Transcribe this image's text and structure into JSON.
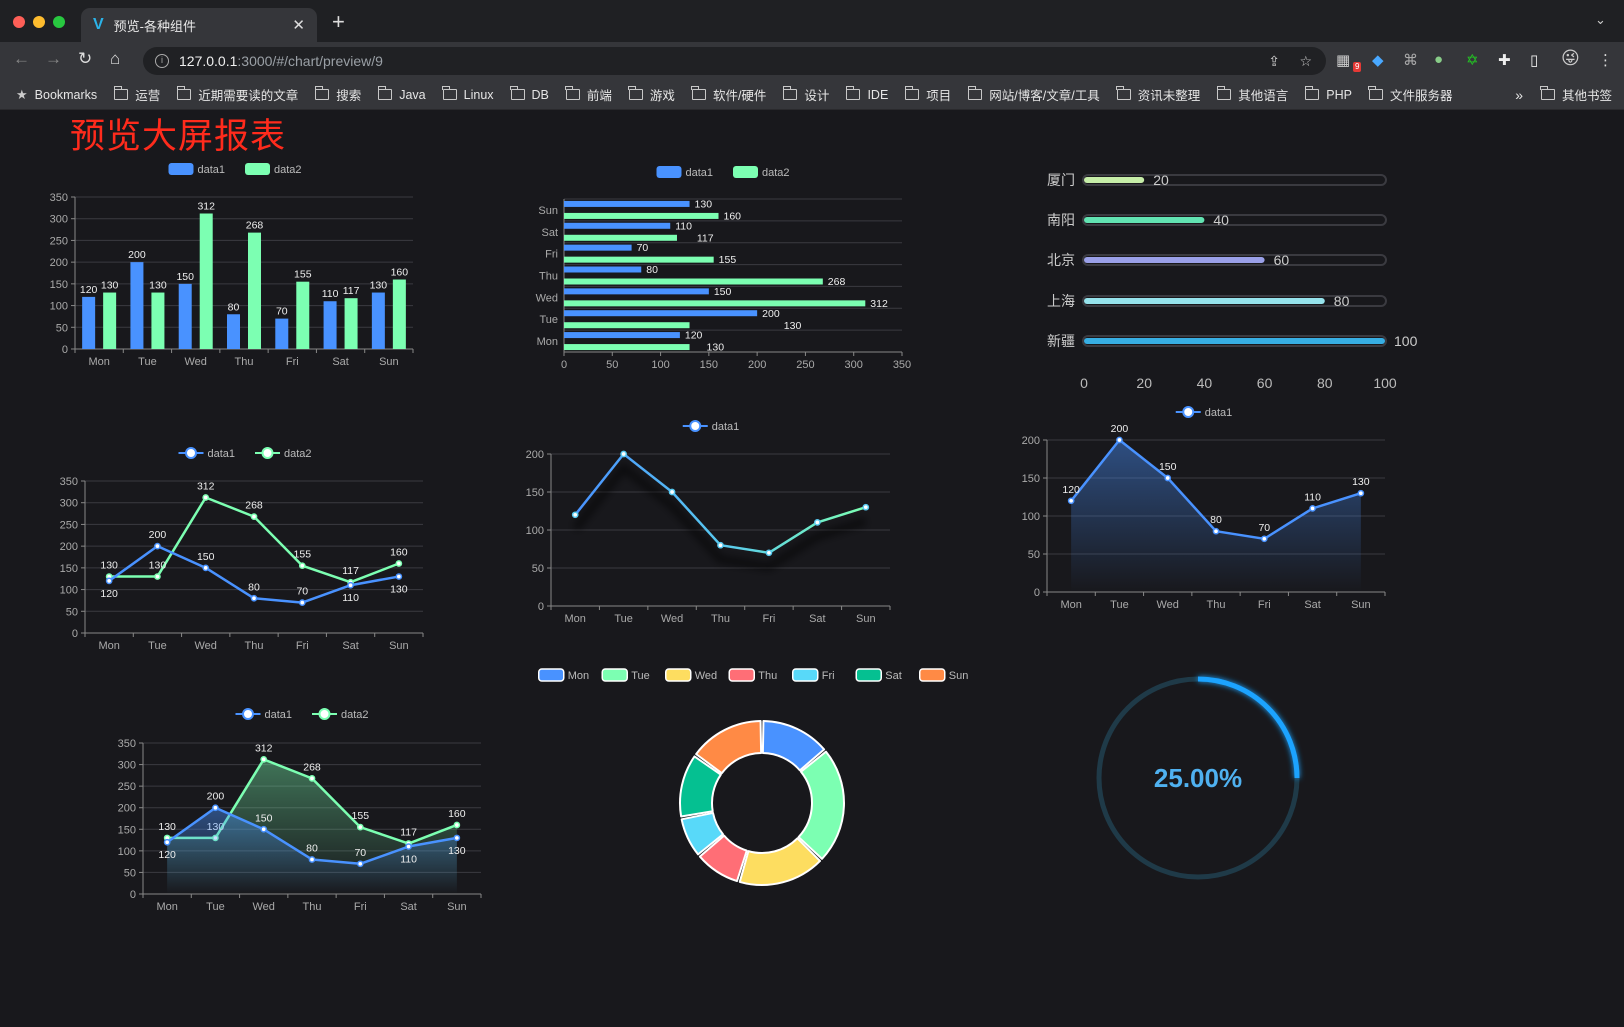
{
  "browser": {
    "tab_title": "预览-各种组件",
    "url_host": "127.0.0.1",
    "url_path": ":3000/#/chart/preview/9",
    "extension_badge": "9",
    "bookmarks": [
      "Bookmarks",
      "运营",
      "近期需要读的文章",
      "搜索",
      "Java",
      "Linux",
      "DB",
      "前端",
      "游戏",
      "软件/硬件",
      "设计",
      "IDE",
      "项目",
      "网站/博客/文章/工具",
      "资讯未整理",
      "其他语言",
      "PHP",
      "文件服务器"
    ],
    "bookmarks_overflow": "»",
    "other_bookmarks": "其他书签"
  },
  "page": {
    "title": "预览大屏报表",
    "title_color": "#ff2b1c"
  },
  "colors": {
    "data1": "#4992ff",
    "data2": "#7cffb2",
    "palette": [
      "#4992ff",
      "#7cffb2",
      "#fddd60",
      "#ff6e76",
      "#58d9f9",
      "#05c091",
      "#ff8a45"
    ]
  },
  "chart_data": [
    {
      "type": "bar",
      "legend": [
        "data1",
        "data2"
      ],
      "categories": [
        "Mon",
        "Tue",
        "Wed",
        "Thu",
        "Fri",
        "Sat",
        "Sun"
      ],
      "series": [
        {
          "name": "data1",
          "values": [
            120,
            200,
            150,
            80,
            70,
            110,
            130
          ]
        },
        {
          "name": "data2",
          "values": [
            130,
            130,
            312,
            268,
            155,
            117,
            160
          ]
        }
      ],
      "yticks": [
        0,
        50,
        100,
        150,
        200,
        250,
        300,
        350
      ],
      "ylim": [
        0,
        350
      ],
      "data_labels": true
    },
    {
      "type": "bar",
      "orientation": "horizontal",
      "legend": [
        "data1",
        "data2"
      ],
      "categories": [
        "Mon",
        "Tue",
        "Wed",
        "Thu",
        "Fri",
        "Sat",
        "Sun"
      ],
      "series": [
        {
          "name": "data1",
          "values": [
            120,
            200,
            150,
            80,
            70,
            110,
            130
          ]
        },
        {
          "name": "data2",
          "values": [
            130,
            130,
            312,
            268,
            155,
            117,
            160
          ]
        }
      ],
      "xticks": [
        0,
        50,
        100,
        150,
        200,
        250,
        300,
        350
      ],
      "xlim": [
        0,
        350
      ],
      "data_labels": true
    },
    {
      "type": "bar",
      "orientation": "horizontal",
      "style": "progress",
      "categories": [
        "厦门",
        "南阳",
        "北京",
        "上海",
        "新疆"
      ],
      "values": [
        20,
        40,
        60,
        80,
        100
      ],
      "colors": [
        "#c6eda8",
        "#62e3b2",
        "#9aa0e8",
        "#96e3ec",
        "#37aee3"
      ],
      "xticks": [
        0,
        20,
        40,
        60,
        80,
        100
      ],
      "xlim": [
        0,
        100
      ]
    },
    {
      "type": "line",
      "legend": [
        "data1",
        "data2"
      ],
      "categories": [
        "Mon",
        "Tue",
        "Wed",
        "Thu",
        "Fri",
        "Sat",
        "Sun"
      ],
      "series": [
        {
          "name": "data1",
          "values": [
            120,
            200,
            150,
            80,
            70,
            110,
            130
          ]
        },
        {
          "name": "data2",
          "values": [
            130,
            130,
            312,
            268,
            155,
            117,
            160
          ]
        }
      ],
      "yticks": [
        0,
        50,
        100,
        150,
        200,
        250,
        300,
        350
      ],
      "ylim": [
        0,
        350
      ],
      "data_labels": true
    },
    {
      "type": "line",
      "legend": [
        "data1"
      ],
      "categories": [
        "Mon",
        "Tue",
        "Wed",
        "Thu",
        "Fri",
        "Sat",
        "Sun"
      ],
      "series": [
        {
          "name": "data1",
          "values": [
            120,
            200,
            150,
            80,
            70,
            110,
            130
          ]
        }
      ],
      "yticks": [
        0,
        50,
        100,
        150,
        200
      ],
      "ylim": [
        0,
        200
      ],
      "gradient_line": true
    },
    {
      "type": "area",
      "legend": [
        "data1"
      ],
      "categories": [
        "Mon",
        "Tue",
        "Wed",
        "Thu",
        "Fri",
        "Sat",
        "Sun"
      ],
      "series": [
        {
          "name": "data1",
          "values": [
            120,
            200,
            150,
            80,
            70,
            110,
            130
          ]
        }
      ],
      "yticks": [
        0,
        50,
        100,
        150,
        200
      ],
      "ylim": [
        0,
        200
      ],
      "data_labels": true
    },
    {
      "type": "area",
      "legend": [
        "data1",
        "data2"
      ],
      "categories": [
        "Mon",
        "Tue",
        "Wed",
        "Thu",
        "Fri",
        "Sat",
        "Sun"
      ],
      "series": [
        {
          "name": "data1",
          "values": [
            120,
            200,
            150,
            80,
            70,
            110,
            130
          ]
        },
        {
          "name": "data2",
          "values": [
            130,
            130,
            312,
            268,
            155,
            117,
            160
          ]
        }
      ],
      "yticks": [
        0,
        50,
        100,
        150,
        200,
        250,
        300,
        350
      ],
      "ylim": [
        0,
        350
      ],
      "data_labels": true
    },
    {
      "type": "pie",
      "style": "donut",
      "legend": [
        "Mon",
        "Tue",
        "Wed",
        "Thu",
        "Fri",
        "Sat",
        "Sun"
      ],
      "categories": [
        "Mon",
        "Tue",
        "Wed",
        "Thu",
        "Fri",
        "Sat",
        "Sun"
      ],
      "values": [
        120,
        200,
        150,
        80,
        70,
        110,
        130
      ]
    },
    {
      "type": "gauge",
      "value": 25,
      "label": "25.00%",
      "color": "#1aa3ff",
      "track_color": "#1f3a48"
    }
  ]
}
